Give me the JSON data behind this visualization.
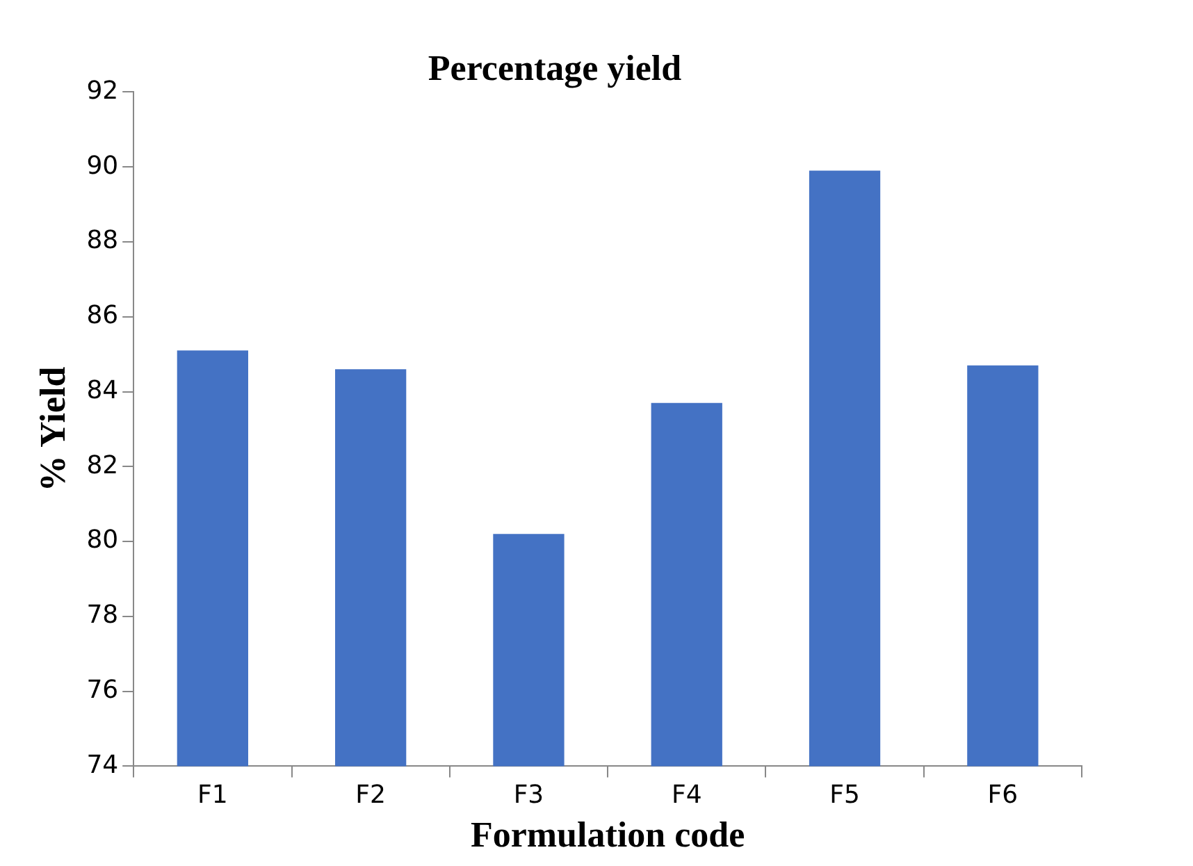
{
  "chart_data": {
    "type": "bar",
    "title": "Percentage yield",
    "xlabel": "Formulation code",
    "ylabel": "% Yield",
    "categories": [
      "F1",
      "F2",
      "F3",
      "F4",
      "F5",
      "F6"
    ],
    "values": [
      85.1,
      84.6,
      80.2,
      83.7,
      89.9,
      84.7
    ],
    "color": "#4472c4",
    "ylim": [
      74,
      92
    ],
    "yticks": [
      74,
      76,
      78,
      80,
      82,
      84,
      86,
      88,
      90,
      92
    ],
    "grid": false,
    "legend": false
  }
}
